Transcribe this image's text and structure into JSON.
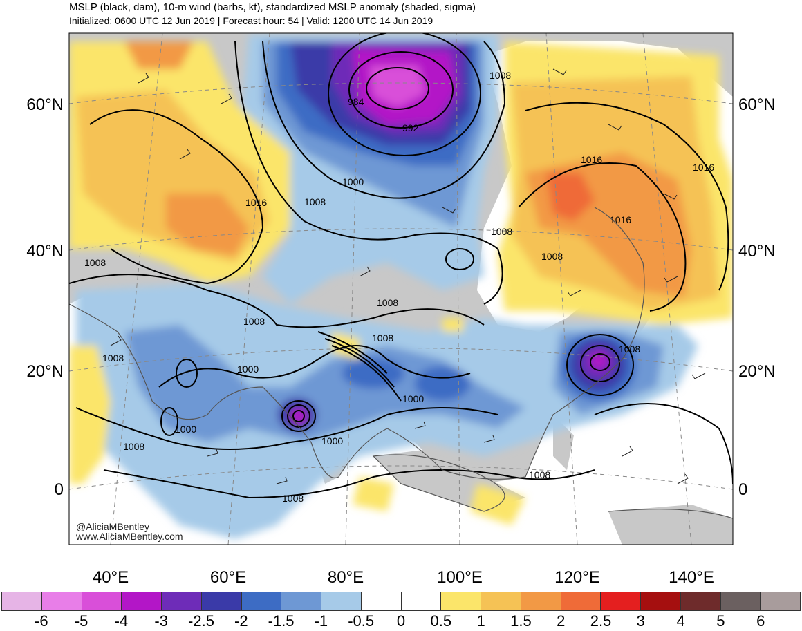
{
  "header": {
    "title": "MSLP (black, dam), 10-m wind (barbs, kt), standardized MSLP anomaly (shaded, sigma)",
    "subtitle": "Initialized: 0600 UTC 12 Jun 2019 | Forecast hour: 54 | Valid: 1200 UTC 14 Jun 2019"
  },
  "map": {
    "lat_labels": [
      "60°N",
      "40°N",
      "20°N",
      "0"
    ],
    "lon_labels": [
      "40°E",
      "60°E",
      "80°E",
      "100°E",
      "120°E",
      "140°E"
    ],
    "contour_labels": [
      "1008",
      "984",
      "992",
      "1000",
      "1016",
      "1008",
      "1016",
      "1008",
      "1016",
      "1016",
      "1008",
      "1008",
      "1008",
      "1008",
      "1008",
      "1008",
      "1000",
      "1000",
      "1000",
      "1008",
      "1000",
      "1008",
      "1008",
      "1008"
    ],
    "features": [
      "low-pressure-center-siberia",
      "tropical-cyclone-bay-of-bengal",
      "tropical-cyclone-east-of-taiwan"
    ],
    "credit_handle": "@AliciaMBentley",
    "credit_site": "www.AliciaMBentley.com"
  },
  "colorbar": {
    "labels": [
      "-6",
      "-5",
      "-4",
      "-3",
      "-2.5",
      "-2",
      "-1.5",
      "-1",
      "-0.5",
      "0",
      "0.5",
      "1",
      "1.5",
      "2",
      "2.5",
      "3",
      "4",
      "5",
      "6"
    ],
    "colors": [
      "#e6b4e6",
      "#e87ee8",
      "#d94fd9",
      "#b316c7",
      "#6e2cb8",
      "#3a3aa8",
      "#3d6cc4",
      "#6e98d4",
      "#a6cae8",
      "#ffffff",
      "#ffffff",
      "#fbe56a",
      "#f5c255",
      "#f29945",
      "#ef6b38",
      "#e41f1f",
      "#a50f0f",
      "#6e2b2b",
      "#6b6060",
      "#a89c9c"
    ],
    "unit": "sigma"
  }
}
